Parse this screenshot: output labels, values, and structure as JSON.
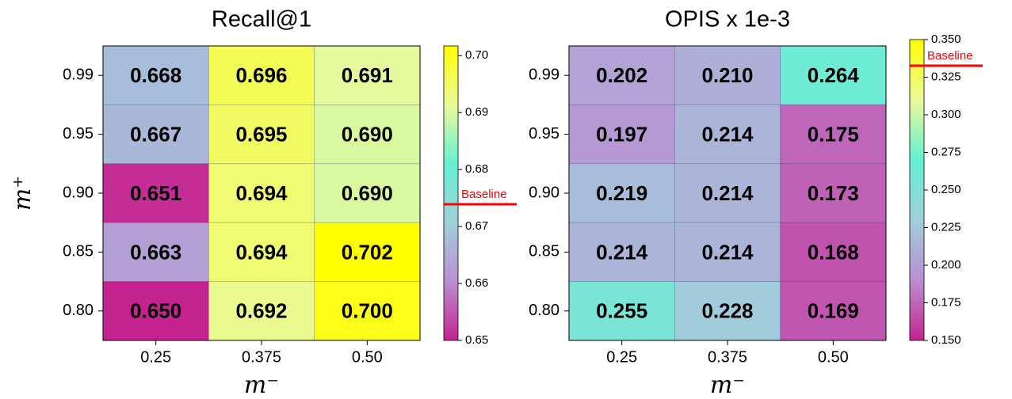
{
  "chart_data": [
    {
      "type": "heatmap",
      "title": "Recall@1",
      "x": [
        "0.25",
        "0.375",
        "0.50"
      ],
      "y": [
        "0.99",
        "0.95",
        "0.90",
        "0.85",
        "0.80"
      ],
      "xlabel": "m⁻",
      "ylabel": "m⁺",
      "values": [
        [
          0.668,
          0.696,
          0.691
        ],
        [
          0.667,
          0.695,
          0.69
        ],
        [
          0.651,
          0.694,
          0.69
        ],
        [
          0.663,
          0.694,
          0.702
        ],
        [
          0.65,
          0.692,
          0.7
        ]
      ],
      "value_labels": [
        [
          "0.668",
          "0.696",
          "0.691"
        ],
        [
          "0.667",
          "0.695",
          "0.690"
        ],
        [
          "0.651",
          "0.694",
          "0.690"
        ],
        [
          "0.663",
          "0.694",
          "0.702"
        ],
        [
          "0.650",
          "0.692",
          "0.700"
        ]
      ],
      "clim": [
        0.65,
        0.7017
      ],
      "cticks": [
        0.65,
        0.66,
        0.67,
        0.68,
        0.69,
        {
          "value": 0.7,
          "label": "0.70"
        }
      ],
      "colormap": [
        "#c4238f",
        "#bb8ed2",
        "#9fcfdc",
        "#64f0d4",
        "#eafa98",
        "#ffff00"
      ],
      "baseline": {
        "label": "Baseline",
        "value": 0.6739,
        "color": "#ff0000"
      }
    },
    {
      "type": "heatmap",
      "title": "OPIS x 1e-3",
      "x": [
        "0.25",
        "0.375",
        "0.50"
      ],
      "y": [
        "0.99",
        "0.95",
        "0.90",
        "0.85",
        "0.80"
      ],
      "xlabel": "m⁻",
      "values": [
        [
          0.202,
          0.21,
          0.264
        ],
        [
          0.197,
          0.214,
          0.175
        ],
        [
          0.219,
          0.214,
          0.173
        ],
        [
          0.214,
          0.214,
          0.168
        ],
        [
          0.255,
          0.228,
          0.169
        ]
      ],
      "value_labels": [
        [
          "0.202",
          "0.210",
          "0.264"
        ],
        [
          "0.197",
          "0.214",
          "0.175"
        ],
        [
          "0.219",
          "0.214",
          "0.173"
        ],
        [
          "0.214",
          "0.214",
          "0.168"
        ],
        [
          "0.255",
          "0.228",
          "0.169"
        ]
      ],
      "clim": [
        0.15,
        0.35
      ],
      "cticks": [
        {
          "value": 0.15,
          "label": "0.150"
        },
        0.175,
        {
          "value": 0.2,
          "label": "0.200"
        },
        0.225,
        {
          "value": 0.25,
          "label": "0.250"
        },
        0.275,
        {
          "value": 0.3,
          "label": "0.300"
        },
        0.325,
        {
          "value": 0.35,
          "label": "0.350"
        }
      ],
      "colormap": [
        "#c4238f",
        "#bb8ed2",
        "#9fcfdc",
        "#64f0d4",
        "#eafa98",
        "#ffff00"
      ],
      "baseline": {
        "label": "Baseline",
        "value": 0.3326,
        "color": "#ff0000"
      }
    }
  ]
}
